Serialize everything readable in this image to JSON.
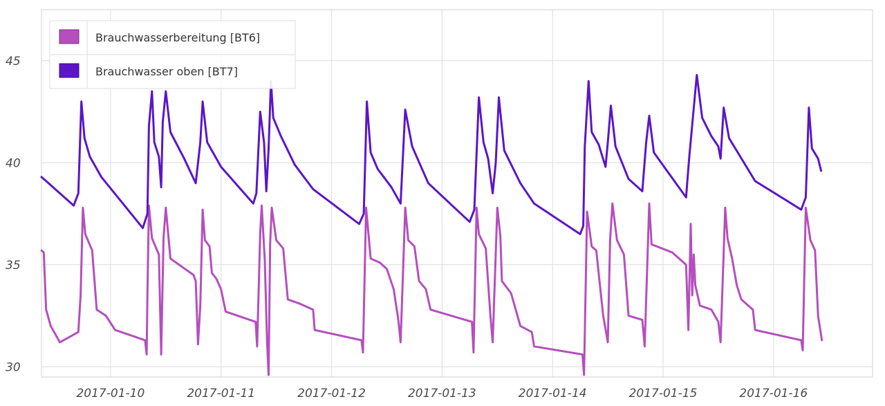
{
  "chart_data": {
    "type": "line",
    "title": "",
    "xlabel": "",
    "ylabel": "",
    "xlim": [
      "2017-01-09 09:00",
      "2017-01-16 21:30"
    ],
    "ylim": [
      29.5,
      47.5
    ],
    "grid": true,
    "legend_position": "top-left",
    "y_ticks": [
      "30",
      "35",
      "40",
      "45"
    ],
    "x_ticks": [
      "2017-01-10",
      "2017-01-11",
      "2017-01-12",
      "2017-01-13",
      "2017-01-14",
      "2017-01-15",
      "2017-01-16"
    ],
    "series": [
      {
        "name": "Brauchwasserbereitung [BT6]",
        "color": "#b44fbd",
        "points": [
          [
            "2017-01-09 09:00",
            35.7
          ],
          [
            "2017-01-09 09:30",
            35.6
          ],
          [
            "2017-01-09 10:00",
            32.8
          ],
          [
            "2017-01-09 11:00",
            32.0
          ],
          [
            "2017-01-09 13:00",
            31.2
          ],
          [
            "2017-01-09 17:00",
            31.7
          ],
          [
            "2017-01-09 17:30",
            33.5
          ],
          [
            "2017-01-09 18:00",
            37.8
          ],
          [
            "2017-01-09 18:30",
            36.5
          ],
          [
            "2017-01-09 20:00",
            35.7
          ],
          [
            "2017-01-09 21:00",
            32.8
          ],
          [
            "2017-01-09 23:00",
            32.5
          ],
          [
            "2017-01-10 01:00",
            31.8
          ],
          [
            "2017-01-10 07:30",
            31.3
          ],
          [
            "2017-01-10 07:50",
            30.6
          ],
          [
            "2017-01-10 08:00",
            33.5
          ],
          [
            "2017-01-10 08:20",
            37.9
          ],
          [
            "2017-01-10 09:00",
            36.3
          ],
          [
            "2017-01-10 10:30",
            35.5
          ],
          [
            "2017-01-10 11:00",
            30.6
          ],
          [
            "2017-01-10 11:30",
            36.3
          ],
          [
            "2017-01-10 12:00",
            37.8
          ],
          [
            "2017-01-10 13:00",
            35.3
          ],
          [
            "2017-01-10 18:00",
            34.5
          ],
          [
            "2017-01-10 18:30",
            34.2
          ],
          [
            "2017-01-10 19:00",
            31.1
          ],
          [
            "2017-01-10 19:30",
            33.0
          ],
          [
            "2017-01-10 20:00",
            37.7
          ],
          [
            "2017-01-10 20:30",
            36.2
          ],
          [
            "2017-01-10 21:30",
            35.9
          ],
          [
            "2017-01-10 22:00",
            34.6
          ],
          [
            "2017-01-10 23:00",
            34.3
          ],
          [
            "2017-01-11 00:00",
            33.8
          ],
          [
            "2017-01-11 01:00",
            32.7
          ],
          [
            "2017-01-11 07:30",
            32.2
          ],
          [
            "2017-01-11 07:50",
            31.0
          ],
          [
            "2017-01-11 08:30",
            36.5
          ],
          [
            "2017-01-11 08:50",
            37.9
          ],
          [
            "2017-01-11 09:30",
            35.2
          ],
          [
            "2017-01-11 10:00",
            31.2
          ],
          [
            "2017-01-11 10:20",
            29.6
          ],
          [
            "2017-01-11 10:40",
            36.0
          ],
          [
            "2017-01-11 11:00",
            37.8
          ],
          [
            "2017-01-11 12:00",
            36.2
          ],
          [
            "2017-01-11 13:30",
            35.8
          ],
          [
            "2017-01-11 14:30",
            33.3
          ],
          [
            "2017-01-11 17:00",
            33.1
          ],
          [
            "2017-01-11 20:00",
            32.8
          ],
          [
            "2017-01-11 20:20",
            31.8
          ],
          [
            "2017-01-12 06:30",
            31.3
          ],
          [
            "2017-01-12 06:50",
            30.7
          ],
          [
            "2017-01-12 07:30",
            37.8
          ],
          [
            "2017-01-12 08:30",
            35.3
          ],
          [
            "2017-01-12 10:30",
            35.1
          ],
          [
            "2017-01-12 12:00",
            34.8
          ],
          [
            "2017-01-12 13:30",
            33.8
          ],
          [
            "2017-01-12 14:30",
            32.3
          ],
          [
            "2017-01-12 15:00",
            31.2
          ],
          [
            "2017-01-12 16:00",
            37.8
          ],
          [
            "2017-01-12 16:40",
            36.2
          ],
          [
            "2017-01-12 18:00",
            35.9
          ],
          [
            "2017-01-12 19:00",
            34.2
          ],
          [
            "2017-01-12 20:30",
            33.8
          ],
          [
            "2017-01-12 21:30",
            32.8
          ],
          [
            "2017-01-13 06:30",
            32.2
          ],
          [
            "2017-01-13 06:50",
            30.7
          ],
          [
            "2017-01-13 07:30",
            37.8
          ],
          [
            "2017-01-13 08:00",
            36.5
          ],
          [
            "2017-01-13 09:30",
            35.8
          ],
          [
            "2017-01-13 10:30",
            32.5
          ],
          [
            "2017-01-13 11:00",
            31.2
          ],
          [
            "2017-01-13 12:00",
            37.8
          ],
          [
            "2017-01-13 12:40",
            36.4
          ],
          [
            "2017-01-13 13:00",
            34.2
          ],
          [
            "2017-01-13 15:00",
            33.6
          ],
          [
            "2017-01-13 17:00",
            32.0
          ],
          [
            "2017-01-13 19:30",
            31.7
          ],
          [
            "2017-01-13 20:00",
            31.0
          ],
          [
            "2017-01-14 06:30",
            30.6
          ],
          [
            "2017-01-14 06:50",
            29.6
          ],
          [
            "2017-01-14 07:30",
            37.6
          ],
          [
            "2017-01-14 08:30",
            35.9
          ],
          [
            "2017-01-14 09:30",
            35.7
          ],
          [
            "2017-01-14 11:00",
            32.5
          ],
          [
            "2017-01-14 12:00",
            31.2
          ],
          [
            "2017-01-14 12:30",
            36.2
          ],
          [
            "2017-01-14 13:00",
            38.0
          ],
          [
            "2017-01-14 14:00",
            36.2
          ],
          [
            "2017-01-14 15:30",
            35.5
          ],
          [
            "2017-01-14 16:30",
            32.5
          ],
          [
            "2017-01-14 19:30",
            32.3
          ],
          [
            "2017-01-14 20:00",
            31.0
          ],
          [
            "2017-01-14 21:00",
            38.0
          ],
          [
            "2017-01-14 21:30",
            36.0
          ],
          [
            "2017-01-15 02:00",
            35.6
          ],
          [
            "2017-01-15 05:00",
            35.0
          ],
          [
            "2017-01-15 05:30",
            31.8
          ],
          [
            "2017-01-15 06:00",
            37.0
          ],
          [
            "2017-01-15 06:20",
            33.5
          ],
          [
            "2017-01-15 06:40",
            35.5
          ],
          [
            "2017-01-15 07:00",
            34.0
          ],
          [
            "2017-01-15 08:00",
            33.0
          ],
          [
            "2017-01-15 10:30",
            32.8
          ],
          [
            "2017-01-15 12:00",
            32.2
          ],
          [
            "2017-01-15 12:30",
            31.2
          ],
          [
            "2017-01-15 13:30",
            37.8
          ],
          [
            "2017-01-15 14:00",
            36.3
          ],
          [
            "2017-01-15 15:00",
            35.3
          ],
          [
            "2017-01-15 16:00",
            34.0
          ],
          [
            "2017-01-15 17:00",
            33.3
          ],
          [
            "2017-01-15 19:30",
            32.8
          ],
          [
            "2017-01-15 20:00",
            31.8
          ],
          [
            "2017-01-16 06:00",
            31.3
          ],
          [
            "2017-01-16 06:20",
            30.8
          ],
          [
            "2017-01-16 07:00",
            37.8
          ],
          [
            "2017-01-16 08:00",
            36.2
          ],
          [
            "2017-01-16 09:00",
            35.7
          ],
          [
            "2017-01-16 09:40",
            32.5
          ],
          [
            "2017-01-16 10:30",
            31.3
          ]
        ]
      },
      {
        "name": "Brauchwasser oben [BT7]",
        "color": "#5a16c8",
        "points": [
          [
            "2017-01-09 09:00",
            39.3
          ],
          [
            "2017-01-09 10:00",
            39.1
          ],
          [
            "2017-01-09 12:00",
            38.7
          ],
          [
            "2017-01-09 16:00",
            37.9
          ],
          [
            "2017-01-09 17:00",
            38.5
          ],
          [
            "2017-01-09 17:40",
            43.0
          ],
          [
            "2017-01-09 18:20",
            41.2
          ],
          [
            "2017-01-09 19:30",
            40.3
          ],
          [
            "2017-01-09 22:00",
            39.3
          ],
          [
            "2017-01-10 07:00",
            36.8
          ],
          [
            "2017-01-10 08:00",
            37.5
          ],
          [
            "2017-01-10 08:20",
            41.8
          ],
          [
            "2017-01-10 09:00",
            43.5
          ],
          [
            "2017-01-10 09:30",
            41.0
          ],
          [
            "2017-01-10 10:30",
            40.3
          ],
          [
            "2017-01-10 11:00",
            38.8
          ],
          [
            "2017-01-10 11:20",
            42.0
          ],
          [
            "2017-01-10 12:00",
            43.5
          ],
          [
            "2017-01-10 13:00",
            41.5
          ],
          [
            "2017-01-10 16:00",
            40.2
          ],
          [
            "2017-01-10 18:30",
            39.0
          ],
          [
            "2017-01-10 19:30",
            41.0
          ],
          [
            "2017-01-10 20:00",
            43.0
          ],
          [
            "2017-01-10 21:00",
            41.0
          ],
          [
            "2017-01-11 00:00",
            39.8
          ],
          [
            "2017-01-11 07:00",
            38.0
          ],
          [
            "2017-01-11 07:40",
            38.5
          ],
          [
            "2017-01-11 08:30",
            42.5
          ],
          [
            "2017-01-11 09:20",
            41.0
          ],
          [
            "2017-01-11 09:50",
            38.6
          ],
          [
            "2017-01-11 10:20",
            40.7
          ],
          [
            "2017-01-11 10:50",
            44.0
          ],
          [
            "2017-01-11 11:20",
            42.2
          ],
          [
            "2017-01-11 13:00",
            41.3
          ],
          [
            "2017-01-11 16:00",
            39.9
          ],
          [
            "2017-01-11 20:00",
            38.7
          ],
          [
            "2017-01-12 06:00",
            37.0
          ],
          [
            "2017-01-12 07:00",
            37.5
          ],
          [
            "2017-01-12 07:40",
            43.0
          ],
          [
            "2017-01-12 08:30",
            40.5
          ],
          [
            "2017-01-12 10:00",
            39.7
          ],
          [
            "2017-01-12 13:00",
            38.8
          ],
          [
            "2017-01-12 15:00",
            38.0
          ],
          [
            "2017-01-12 16:00",
            42.6
          ],
          [
            "2017-01-12 17:30",
            40.8
          ],
          [
            "2017-01-12 21:00",
            39.0
          ],
          [
            "2017-01-13 06:00",
            37.1
          ],
          [
            "2017-01-13 07:00",
            37.7
          ],
          [
            "2017-01-13 08:00",
            43.2
          ],
          [
            "2017-01-13 09:00",
            41.0
          ],
          [
            "2017-01-13 10:00",
            40.2
          ],
          [
            "2017-01-13 11:00",
            38.5
          ],
          [
            "2017-01-13 11:40",
            40.0
          ],
          [
            "2017-01-13 12:20",
            43.2
          ],
          [
            "2017-01-13 13:30",
            40.6
          ],
          [
            "2017-01-13 17:00",
            39.0
          ],
          [
            "2017-01-13 20:00",
            38.0
          ],
          [
            "2017-01-14 06:00",
            36.5
          ],
          [
            "2017-01-14 06:40",
            36.9
          ],
          [
            "2017-01-14 07:00",
            40.8
          ],
          [
            "2017-01-14 07:50",
            44.0
          ],
          [
            "2017-01-14 08:30",
            41.5
          ],
          [
            "2017-01-14 10:00",
            40.9
          ],
          [
            "2017-01-14 11:30",
            39.8
          ],
          [
            "2017-01-14 12:00",
            41.0
          ],
          [
            "2017-01-14 12:40",
            42.8
          ],
          [
            "2017-01-14 13:40",
            40.8
          ],
          [
            "2017-01-14 16:30",
            39.2
          ],
          [
            "2017-01-14 19:30",
            38.6
          ],
          [
            "2017-01-14 20:20",
            41.0
          ],
          [
            "2017-01-14 21:00",
            42.3
          ],
          [
            "2017-01-14 22:00",
            40.5
          ],
          [
            "2017-01-15 05:00",
            38.3
          ],
          [
            "2017-01-15 05:40",
            40.2
          ],
          [
            "2017-01-15 07:20",
            44.3
          ],
          [
            "2017-01-15 08:30",
            42.2
          ],
          [
            "2017-01-15 10:30",
            41.3
          ],
          [
            "2017-01-15 12:00",
            40.8
          ],
          [
            "2017-01-15 12:30",
            40.2
          ],
          [
            "2017-01-15 13:10",
            42.7
          ],
          [
            "2017-01-15 14:20",
            41.2
          ],
          [
            "2017-01-15 16:30",
            40.4
          ],
          [
            "2017-01-15 20:00",
            39.1
          ],
          [
            "2017-01-16 06:00",
            37.7
          ],
          [
            "2017-01-16 07:00",
            38.3
          ],
          [
            "2017-01-16 07:40",
            42.7
          ],
          [
            "2017-01-16 08:20",
            40.7
          ],
          [
            "2017-01-16 09:40",
            40.2
          ],
          [
            "2017-01-16 10:20",
            39.6
          ]
        ]
      }
    ]
  }
}
